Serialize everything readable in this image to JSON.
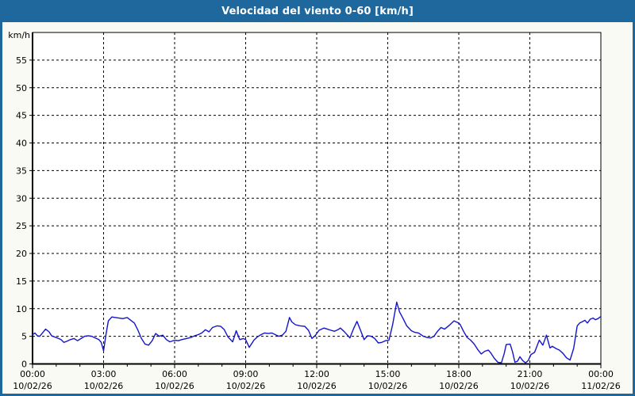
{
  "window": {
    "title": "Velocidad del viento 0-60 [km/h]"
  },
  "chart": {
    "unit_label": "km/h",
    "colors": {
      "titlebar_bg": "#1e689e",
      "frame_border": "#1e689e",
      "page_bg": "#fafaf4",
      "plot_bg": "#ffffff",
      "line": "#1414cc",
      "grid": "#000000",
      "title_text": "#ffffff"
    },
    "y_ticks": [
      "0",
      "5",
      "10",
      "15",
      "20",
      "25",
      "30",
      "35",
      "40",
      "45",
      "50",
      "55"
    ],
    "x_ticks": [
      {
        "time": "00:00",
        "date": "10/02/26"
      },
      {
        "time": "03:00",
        "date": "10/02/26"
      },
      {
        "time": "06:00",
        "date": "10/02/26"
      },
      {
        "time": "09:00",
        "date": "10/02/26"
      },
      {
        "time": "12:00",
        "date": "10/02/26"
      },
      {
        "time": "15:00",
        "date": "10/02/26"
      },
      {
        "time": "18:00",
        "date": "10/02/26"
      },
      {
        "time": "21:00",
        "date": "10/02/26"
      },
      {
        "time": "00:00",
        "date": "11/02/26"
      }
    ]
  },
  "chart_data": {
    "type": "line",
    "title": "Velocidad del viento 0-60 [km/h]",
    "ylabel": "km/h",
    "ylim": [
      0,
      60
    ],
    "y_tick_step": 5,
    "x_range_hours": [
      0,
      24
    ],
    "x_major_tick_hours": 3,
    "x_minor_tick_hours": 1,
    "x_start_label": "00:00 10/02/26",
    "x_end_label": "00:00 11/02/26",
    "grid": "dashed",
    "legend": "none",
    "series": [
      {
        "name": "Velocidad del viento [km/h]",
        "points_hour_value": [
          [
            0,
            5.3
          ],
          [
            0.1,
            5.6
          ],
          [
            0.2,
            5.1
          ],
          [
            0.3,
            5.0
          ],
          [
            0.42,
            5.6
          ],
          [
            0.55,
            6.3
          ],
          [
            0.7,
            5.8
          ],
          [
            0.8,
            5.1
          ],
          [
            0.92,
            4.9
          ],
          [
            1.05,
            4.7
          ],
          [
            1.2,
            4.4
          ],
          [
            1.32,
            3.9
          ],
          [
            1.45,
            4.1
          ],
          [
            1.6,
            4.4
          ],
          [
            1.75,
            4.6
          ],
          [
            1.9,
            4.2
          ],
          [
            2.05,
            4.6
          ],
          [
            2.2,
            5.0
          ],
          [
            2.35,
            5.1
          ],
          [
            2.5,
            5.0
          ],
          [
            2.65,
            4.7
          ],
          [
            2.8,
            4.4
          ],
          [
            2.9,
            3.9
          ],
          [
            3.0,
            2.4
          ],
          [
            3.1,
            5.3
          ],
          [
            3.2,
            7.8
          ],
          [
            3.35,
            8.5
          ],
          [
            3.5,
            8.4
          ],
          [
            3.65,
            8.3
          ],
          [
            3.8,
            8.2
          ],
          [
            4.0,
            8.4
          ],
          [
            4.15,
            7.9
          ],
          [
            4.3,
            7.4
          ],
          [
            4.45,
            6.1
          ],
          [
            4.6,
            4.6
          ],
          [
            4.75,
            3.6
          ],
          [
            4.9,
            3.4
          ],
          [
            5.05,
            4.2
          ],
          [
            5.2,
            5.5
          ],
          [
            5.35,
            5.0
          ],
          [
            5.5,
            5.2
          ],
          [
            5.65,
            4.4
          ],
          [
            5.8,
            4.0
          ],
          [
            6.0,
            4.3
          ],
          [
            6.15,
            4.2
          ],
          [
            6.3,
            4.4
          ],
          [
            6.5,
            4.6
          ],
          [
            6.7,
            4.8
          ],
          [
            6.85,
            5.1
          ],
          [
            7.0,
            5.3
          ],
          [
            7.15,
            5.6
          ],
          [
            7.3,
            6.2
          ],
          [
            7.45,
            5.8
          ],
          [
            7.6,
            6.6
          ],
          [
            7.8,
            6.9
          ],
          [
            7.95,
            6.8
          ],
          [
            8.1,
            6.2
          ],
          [
            8.25,
            4.9
          ],
          [
            8.45,
            4.0
          ],
          [
            8.6,
            6.0
          ],
          [
            8.75,
            4.4
          ],
          [
            8.9,
            4.6
          ],
          [
            9.0,
            4.4
          ],
          [
            9.15,
            3.0
          ],
          [
            9.35,
            4.3
          ],
          [
            9.5,
            4.9
          ],
          [
            9.65,
            5.3
          ],
          [
            9.8,
            5.6
          ],
          [
            9.95,
            5.5
          ],
          [
            10.1,
            5.6
          ],
          [
            10.25,
            5.3
          ],
          [
            10.4,
            5.0
          ],
          [
            10.55,
            5.2
          ],
          [
            10.7,
            5.9
          ],
          [
            10.85,
            8.4
          ],
          [
            10.95,
            7.6
          ],
          [
            11.1,
            7.1
          ],
          [
            11.3,
            6.9
          ],
          [
            11.5,
            6.8
          ],
          [
            11.65,
            6.1
          ],
          [
            11.8,
            4.6
          ],
          [
            11.95,
            5.2
          ],
          [
            12.1,
            6.1
          ],
          [
            12.3,
            6.5
          ],
          [
            12.45,
            6.3
          ],
          [
            12.6,
            6.1
          ],
          [
            12.75,
            5.9
          ],
          [
            12.9,
            6.2
          ],
          [
            13.0,
            6.5
          ],
          [
            13.15,
            5.9
          ],
          [
            13.3,
            5.2
          ],
          [
            13.4,
            4.7
          ],
          [
            13.55,
            6.3
          ],
          [
            13.7,
            7.7
          ],
          [
            13.85,
            6.1
          ],
          [
            14.0,
            4.4
          ],
          [
            14.15,
            5.1
          ],
          [
            14.3,
            5.0
          ],
          [
            14.45,
            4.6
          ],
          [
            14.6,
            3.8
          ],
          [
            14.75,
            3.9
          ],
          [
            14.9,
            4.2
          ],
          [
            15.05,
            4.3
          ],
          [
            15.2,
            7.0
          ],
          [
            15.38,
            11.2
          ],
          [
            15.5,
            9.4
          ],
          [
            15.65,
            8.2
          ],
          [
            15.8,
            6.9
          ],
          [
            16.0,
            6.0
          ],
          [
            16.15,
            5.7
          ],
          [
            16.3,
            5.6
          ],
          [
            16.5,
            5.0
          ],
          [
            16.65,
            4.8
          ],
          [
            16.8,
            4.7
          ],
          [
            16.95,
            5.0
          ],
          [
            17.1,
            5.9
          ],
          [
            17.25,
            6.6
          ],
          [
            17.4,
            6.3
          ],
          [
            17.6,
            7.0
          ],
          [
            17.8,
            7.8
          ],
          [
            17.95,
            7.5
          ],
          [
            18.05,
            7.2
          ],
          [
            18.2,
            5.9
          ],
          [
            18.35,
            4.8
          ],
          [
            18.5,
            4.3
          ],
          [
            18.65,
            3.6
          ],
          [
            18.8,
            2.6
          ],
          [
            18.95,
            1.8
          ],
          [
            19.1,
            2.3
          ],
          [
            19.25,
            2.5
          ],
          [
            19.35,
            2.0
          ],
          [
            19.5,
            1.0
          ],
          [
            19.65,
            0.3
          ],
          [
            19.8,
            0.2
          ],
          [
            19.92,
            1.9
          ],
          [
            20.0,
            3.5
          ],
          [
            20.17,
            3.6
          ],
          [
            20.27,
            2.2
          ],
          [
            20.37,
            0.3
          ],
          [
            20.48,
            0.5
          ],
          [
            20.58,
            1.3
          ],
          [
            20.7,
            0.6
          ],
          [
            20.82,
            0.2
          ],
          [
            20.93,
            0.6
          ],
          [
            21.05,
            1.7
          ],
          [
            21.2,
            2.1
          ],
          [
            21.4,
            4.3
          ],
          [
            21.55,
            3.4
          ],
          [
            21.7,
            5.2
          ],
          [
            21.85,
            2.9
          ],
          [
            21.95,
            3.2
          ],
          [
            22.1,
            2.8
          ],
          [
            22.25,
            2.5
          ],
          [
            22.4,
            1.9
          ],
          [
            22.55,
            1.1
          ],
          [
            22.7,
            0.7
          ],
          [
            22.85,
            2.8
          ],
          [
            23.0,
            6.9
          ],
          [
            23.1,
            7.4
          ],
          [
            23.2,
            7.6
          ],
          [
            23.33,
            7.9
          ],
          [
            23.43,
            7.4
          ],
          [
            23.55,
            8.1
          ],
          [
            23.67,
            8.3
          ],
          [
            23.77,
            8.0
          ],
          [
            23.88,
            8.2
          ],
          [
            24.0,
            8.6
          ]
        ]
      }
    ]
  }
}
